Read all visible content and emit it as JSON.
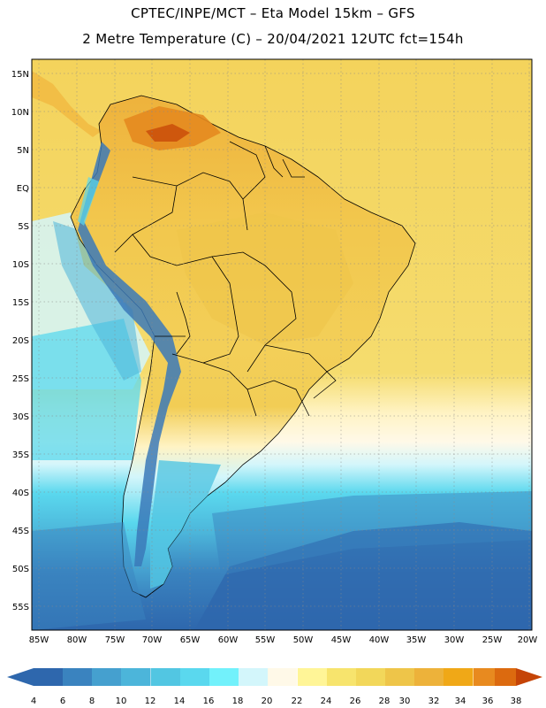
{
  "header": {
    "line1": "CPTEC/INPE/MCT –  Eta Model 15km – GFS",
    "line2": "2 Metre Temperature (C) – 20/04/2021 12UTC fct=154h"
  },
  "map": {
    "lat_labels": [
      "15N",
      "10N",
      "5N",
      "EQ",
      "5S",
      "10S",
      "15S",
      "20S",
      "25S",
      "30S",
      "35S",
      "40S",
      "45S",
      "50S",
      "55S"
    ],
    "lon_labels": [
      "85W",
      "80W",
      "75W",
      "70W",
      "65W",
      "60W",
      "55W",
      "50W",
      "45W",
      "40W",
      "35W",
      "30W",
      "25W",
      "20W"
    ],
    "dominant_colors": {
      "tropical_ocean": "#f4d35c",
      "land_warm": "#f2c049",
      "land_hot": "#e48a1f",
      "andes_cold": "#3b79b8",
      "southern_ocean": "#2e67ad",
      "mid_ocean": "#46bfe0"
    }
  },
  "colorbar": {
    "labels": [
      "4",
      "6",
      "8",
      "10",
      "12",
      "14",
      "16",
      "18",
      "20",
      "22",
      "24",
      "26",
      "28",
      "30",
      "32",
      "34",
      "36",
      "38"
    ],
    "colors": [
      "#2e67ad",
      "#3a83bf",
      "#45a0cf",
      "#4cb5da",
      "#52c6e2",
      "#5ad8ee",
      "#72f1fb",
      "#d3f6fb",
      "#fff9e8",
      "#fff597",
      "#f7e46d",
      "#f2d75a",
      "#eec549",
      "#edb23a",
      "#f0a817",
      "#e88a1f",
      "#dc6a0f",
      "#c54407"
    ]
  }
}
